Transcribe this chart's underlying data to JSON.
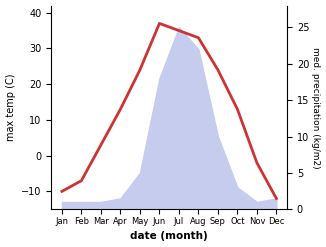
{
  "months": [
    "Jan",
    "Feb",
    "Mar",
    "Apr",
    "May",
    "Jun",
    "Jul",
    "Aug",
    "Sep",
    "Oct",
    "Nov",
    "Dec"
  ],
  "temperature": [
    -10,
    -7,
    3,
    13,
    24,
    37,
    35,
    33,
    24,
    13,
    -2,
    -12
  ],
  "precipitation": [
    1.0,
    1.0,
    1.0,
    1.5,
    5.0,
    18.0,
    25.0,
    22.0,
    10.0,
    3.0,
    1.0,
    1.5
  ],
  "temp_color": "#cc3333",
  "precip_fill_color": "#c5ccee",
  "ylabel_left": "max temp (C)",
  "ylabel_right": "med. precipitation (kg/m2)",
  "xlabel": "date (month)",
  "ylim_left": [
    -15,
    42
  ],
  "ylim_right": [
    0,
    28
  ],
  "yticks_left": [
    -10,
    0,
    10,
    20,
    30,
    40
  ],
  "yticks_right": [
    0,
    5,
    10,
    15,
    20,
    25
  ],
  "bg_color": "#ffffff",
  "line_width": 2.0,
  "figsize": [
    3.26,
    2.47
  ],
  "dpi": 100
}
